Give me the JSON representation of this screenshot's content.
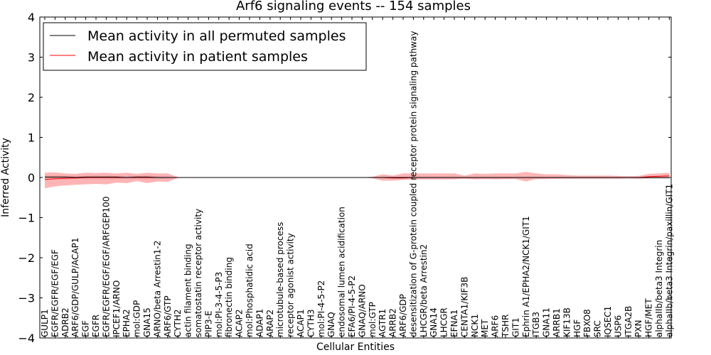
{
  "chart_data": {
    "type": "line",
    "title": "Arf6 signaling events -- 154 samples",
    "xlabel": "Cellular Entities",
    "ylabel": "Inferred Activity",
    "ylim": [
      -4,
      4
    ],
    "yticks": [
      -4,
      -3,
      -2,
      -1,
      0,
      1,
      2,
      3,
      4
    ],
    "grid": false,
    "legend_position": "top-left",
    "categories": [
      "GULP1",
      "EGFR/EGFR/EGF/EGF",
      "ADRB2",
      "ARF6/GDP/GULP/ACAP1",
      "EGF",
      "EGFR",
      "EGFR/EGFR/EGF/EGF/ARFGEP100",
      "IPCEF1/ARNO",
      "EPHA2",
      "mol:GDP",
      "GNA15",
      "ARNO/beta Arrestin1-2",
      "ARF6/GTP",
      "CYTH2",
      "actin filament binding",
      "somatostatin receptor activity",
      "PIP3-E",
      "mol:PI-3-4-5-P3",
      "fibronectin binding",
      "ACAP2",
      "mol:Phosphatidic acid",
      "ADAP1",
      "ARAP2",
      "microtubule-based process",
      "receptor agonist activity",
      "ACAP1",
      "CYTH3",
      "mol:PI-4-5-P2",
      "GNAQ",
      "endosomal lumen acidification",
      "EFA6/PI-4-5-P2",
      "GNAQ/ARNO",
      "mol:GTP",
      "AGTR1",
      "ARRB2",
      "ARF6/GDP",
      "desensitization of G-protein coupled receptor protein signaling pathway",
      "LHCGR/beta Arrestin2",
      "GNA14",
      "LHCGR",
      "EFNA1",
      "CENTA1/KIF3B",
      "NCK1",
      "MET",
      "ARF6",
      "TSHR",
      "GIT1",
      "Ephrin A1/EPHA2/NCK1/GIT1",
      "ITGB3",
      "GNA11",
      "ARRB1",
      "KIF13B",
      "HGF",
      "FBXO8",
      "SRC",
      "IQSEC1",
      "USP6",
      "ITGA2B",
      "PXN",
      "HGF/MET",
      "alphaIIb/beta3 Integrin",
      "alphaIIb/beta3 Integrin/paxillin/GIT1"
    ],
    "series": [
      {
        "name": "Mean activity in all permuted samples",
        "color": "#000000",
        "values": [
          0.01,
          0.01,
          0.01,
          0.0,
          0.01,
          0.01,
          0.01,
          0.01,
          0.0,
          0.01,
          0.01,
          0.0,
          0.0,
          0.0,
          0.0,
          0.0,
          0.0,
          0.0,
          0.0,
          0.0,
          0.0,
          0.0,
          0.0,
          0.0,
          0.0,
          0.0,
          0.0,
          0.0,
          0.0,
          0.0,
          0.0,
          0.0,
          0.0,
          0.0,
          0.0,
          0.0,
          0.0,
          0.0,
          0.0,
          0.0,
          0.0,
          0.0,
          0.0,
          0.0,
          0.0,
          0.0,
          0.0,
          0.0,
          0.0,
          0.0,
          0.0,
          0.0,
          0.0,
          0.0,
          0.0,
          0.0,
          0.0,
          0.0,
          0.0,
          0.0,
          0.0,
          0.0
        ],
        "band_upper": [
          0.05,
          0.05,
          0.05,
          0.04,
          0.05,
          0.05,
          0.05,
          0.05,
          0.04,
          0.04,
          0.05,
          0.04,
          0.03,
          0.0,
          0.0,
          0.0,
          0.0,
          0.0,
          0.0,
          0.0,
          0.0,
          0.0,
          0.0,
          0.0,
          0.0,
          0.0,
          0.0,
          0.0,
          0.0,
          0.0,
          0.0,
          0.0,
          0.01,
          0.02,
          0.02,
          0.02,
          0.02,
          0.02,
          0.02,
          0.02,
          0.02,
          0.02,
          0.02,
          0.02,
          0.02,
          0.02,
          0.02,
          0.02,
          0.02,
          0.02,
          0.02,
          0.02,
          0.02,
          0.02,
          0.02,
          0.02,
          0.02,
          0.02,
          0.02,
          0.02,
          0.02,
          0.02
        ],
        "band_lower": [
          -0.05,
          -0.05,
          -0.05,
          -0.04,
          -0.05,
          -0.05,
          -0.05,
          -0.05,
          -0.04,
          -0.04,
          -0.05,
          -0.04,
          -0.03,
          0.0,
          0.0,
          0.0,
          0.0,
          0.0,
          0.0,
          0.0,
          0.0,
          0.0,
          0.0,
          0.0,
          0.0,
          0.0,
          0.0,
          0.0,
          0.0,
          0.0,
          0.0,
          0.0,
          -0.01,
          -0.02,
          -0.03,
          -0.03,
          -0.03,
          -0.03,
          -0.03,
          -0.03,
          -0.03,
          -0.03,
          -0.03,
          -0.03,
          -0.03,
          -0.03,
          -0.03,
          -0.03,
          -0.03,
          -0.03,
          -0.03,
          -0.03,
          -0.03,
          -0.03,
          -0.03,
          -0.03,
          -0.03,
          -0.03,
          -0.03,
          -0.03,
          -0.03,
          -0.03
        ]
      },
      {
        "name": "Mean activity in patient samples",
        "color": "#ff0000",
        "values": [
          -0.05,
          -0.03,
          -0.02,
          -0.01,
          0.0,
          0.0,
          0.0,
          0.0,
          0.0,
          0.0,
          0.0,
          0.0,
          0.0,
          0.0,
          0.0,
          0.0,
          0.0,
          0.0,
          0.0,
          0.0,
          0.0,
          0.0,
          0.0,
          0.0,
          0.0,
          0.0,
          0.0,
          0.0,
          0.0,
          0.0,
          0.0,
          0.0,
          0.0,
          0.0,
          -0.01,
          -0.01,
          0.0,
          0.0,
          0.0,
          0.0,
          0.0,
          0.0,
          0.0,
          0.0,
          0.0,
          0.0,
          0.0,
          0.0,
          0.0,
          0.0,
          0.0,
          0.0,
          0.0,
          0.0,
          0.0,
          0.0,
          0.0,
          0.0,
          0.0,
          0.02,
          0.03,
          0.04
        ],
        "band_upper": [
          0.12,
          0.13,
          0.1,
          0.09,
          0.12,
          0.11,
          0.12,
          0.1,
          0.12,
          0.09,
          0.12,
          0.1,
          0.1,
          0.01,
          0.0,
          0.0,
          0.0,
          0.0,
          0.0,
          0.0,
          0.0,
          0.0,
          0.0,
          0.0,
          0.0,
          0.0,
          0.0,
          0.0,
          0.0,
          0.0,
          0.0,
          0.0,
          0.02,
          0.08,
          0.05,
          0.1,
          0.1,
          0.1,
          0.1,
          0.1,
          0.1,
          0.05,
          0.1,
          0.09,
          0.1,
          0.1,
          0.1,
          0.14,
          0.1,
          0.08,
          0.08,
          0.06,
          0.05,
          0.05,
          0.05,
          0.05,
          0.04,
          0.03,
          0.04,
          0.09,
          0.1,
          0.12
        ],
        "band_lower": [
          -0.27,
          -0.22,
          -0.2,
          -0.18,
          -0.17,
          -0.16,
          -0.17,
          -0.13,
          -0.14,
          -0.09,
          -0.14,
          -0.1,
          -0.11,
          -0.01,
          0.0,
          0.0,
          0.0,
          0.0,
          0.0,
          0.0,
          0.0,
          0.0,
          0.0,
          0.0,
          0.0,
          0.0,
          0.0,
          0.0,
          0.0,
          0.0,
          0.0,
          0.0,
          -0.02,
          -0.08,
          -0.08,
          -0.06,
          -0.05,
          -0.05,
          -0.05,
          -0.05,
          -0.05,
          -0.03,
          -0.05,
          -0.04,
          -0.05,
          -0.04,
          -0.04,
          -0.1,
          -0.04,
          -0.04,
          -0.03,
          -0.03,
          -0.03,
          -0.03,
          -0.03,
          -0.03,
          -0.03,
          -0.02,
          -0.03,
          -0.02,
          -0.02,
          -0.01
        ]
      }
    ]
  }
}
